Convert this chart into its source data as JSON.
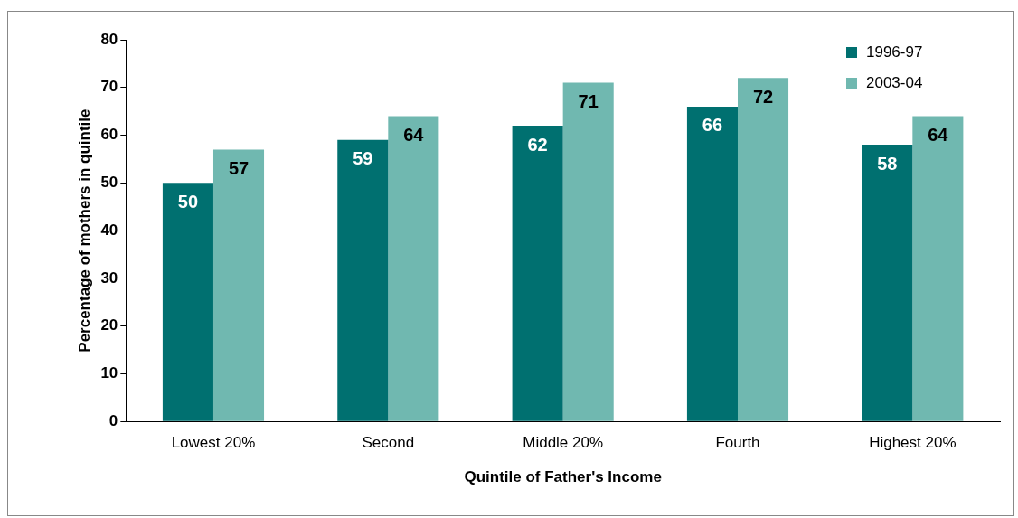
{
  "chart_data": {
    "type": "bar",
    "xlabel": "Quintile of Father's Income",
    "ylabel": "Percentage of mothers in quintile",
    "categories": [
      "Lowest 20%",
      "Second",
      "Middle 20%",
      "Fourth",
      "Highest 20%"
    ],
    "series": [
      {
        "name": "1996-97",
        "color": "#007070",
        "values": [
          50,
          59,
          62,
          66,
          58
        ]
      },
      {
        "name": "2003-04",
        "color": "#70b8b0",
        "values": [
          57,
          64,
          71,
          72,
          64
        ]
      }
    ],
    "ylim": [
      0,
      80
    ],
    "yticks": [
      0,
      10,
      20,
      30,
      40,
      50,
      60,
      70,
      80
    ],
    "grid": false,
    "legend": "top right",
    "data_labels": true
  }
}
